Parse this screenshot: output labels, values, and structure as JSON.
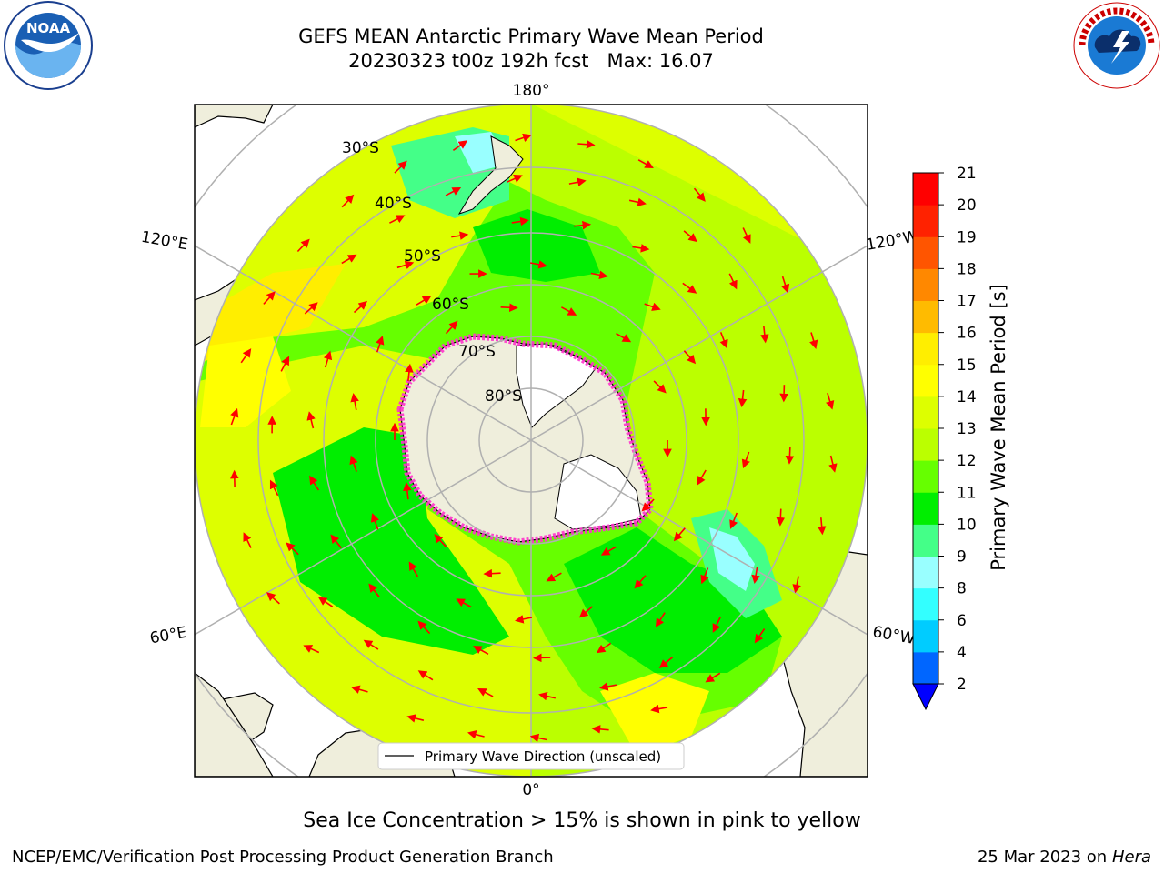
{
  "header": {
    "title_line1": "GEFS MEAN Antarctic Primary Wave Mean Period",
    "title_line2": "20230323 t00z 192h fcst",
    "max_label": "Max: 16.07"
  },
  "logos": {
    "noaa": {
      "text": "NOAA",
      "ring_text": "NATIONAL OCEANIC AND ATMOSPHERIC ADMINISTRATION · U.S. DEPARTMENT OF COMMERCE"
    },
    "nws": {
      "ring_text": "NATIONAL WEATHER SERVICE"
    }
  },
  "map": {
    "longitude_labels": {
      "top": "180°",
      "bottom": "0°",
      "upper_left": "120°E",
      "upper_right": "120°W",
      "lower_left": "60°E",
      "lower_right": "60°W"
    },
    "latitude_labels": [
      "30°S",
      "40°S",
      "50°S",
      "60°S",
      "70°S",
      "80°S"
    ],
    "legend_label": "Primary Wave Direction (unscaled)",
    "colors": {
      "land": "#efeedc",
      "ice": "#ffffff",
      "arrow": "#ff0000",
      "sea_ice_edge": "#ff33cc",
      "grid": "#b0b0b0"
    }
  },
  "colorbar": {
    "title": "Primary Wave Mean Period [s]",
    "tick_labels": [
      "2",
      "4",
      "6",
      "8",
      "9",
      "10",
      "11",
      "12",
      "13",
      "14",
      "15",
      "16",
      "17",
      "18",
      "19",
      "20",
      "21"
    ],
    "colors": [
      "#0066ff",
      "#00ccff",
      "#33ffff",
      "#99ffff",
      "#44ff88",
      "#00ee00",
      "#66ff00",
      "#bbff00",
      "#ddff00",
      "#ffff00",
      "#ffee00",
      "#ffbb00",
      "#ff8800",
      "#ff5500",
      "#ff2200",
      "#ff0000"
    ],
    "extend_color": "#0000ff"
  },
  "footer": {
    "note": "Sea Ice Concentration > 15% is shown in pink to yellow",
    "left": "NCEP/EMC/Verification Post Processing Product Generation Branch",
    "date": "25 Mar 2023 on",
    "machine": "Hera"
  }
}
